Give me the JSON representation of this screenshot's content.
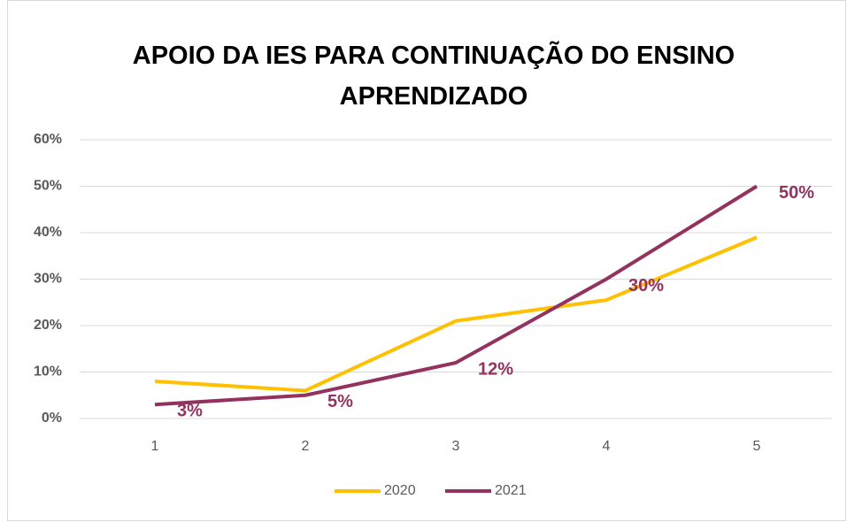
{
  "chart_data": {
    "type": "line",
    "title": "APOIO DA IES PARA CONTINUAÇÃO DO ENSINO APRENDIZADO",
    "categories": [
      "1",
      "2",
      "3",
      "4",
      "5"
    ],
    "series": [
      {
        "name": "2020",
        "color": "#FFC000",
        "values": [
          8,
          6,
          21,
          25.5,
          39
        ]
      },
      {
        "name": "2021",
        "color": "#93325E",
        "values": [
          3,
          5,
          12,
          30,
          50
        ],
        "value_labels": [
          "3%",
          "5%",
          "12%",
          "30%",
          "50%"
        ]
      }
    ],
    "ylim": [
      0,
      60
    ],
    "yticks": [
      {
        "value": 0,
        "label": "0%"
      },
      {
        "value": 10,
        "label": "10%"
      },
      {
        "value": 20,
        "label": "20%"
      },
      {
        "value": 30,
        "label": "30%"
      },
      {
        "value": 40,
        "label": "40%"
      },
      {
        "value": 50,
        "label": "50%"
      },
      {
        "value": 60,
        "label": "60%"
      }
    ],
    "grid": true,
    "legend": "bottom"
  }
}
